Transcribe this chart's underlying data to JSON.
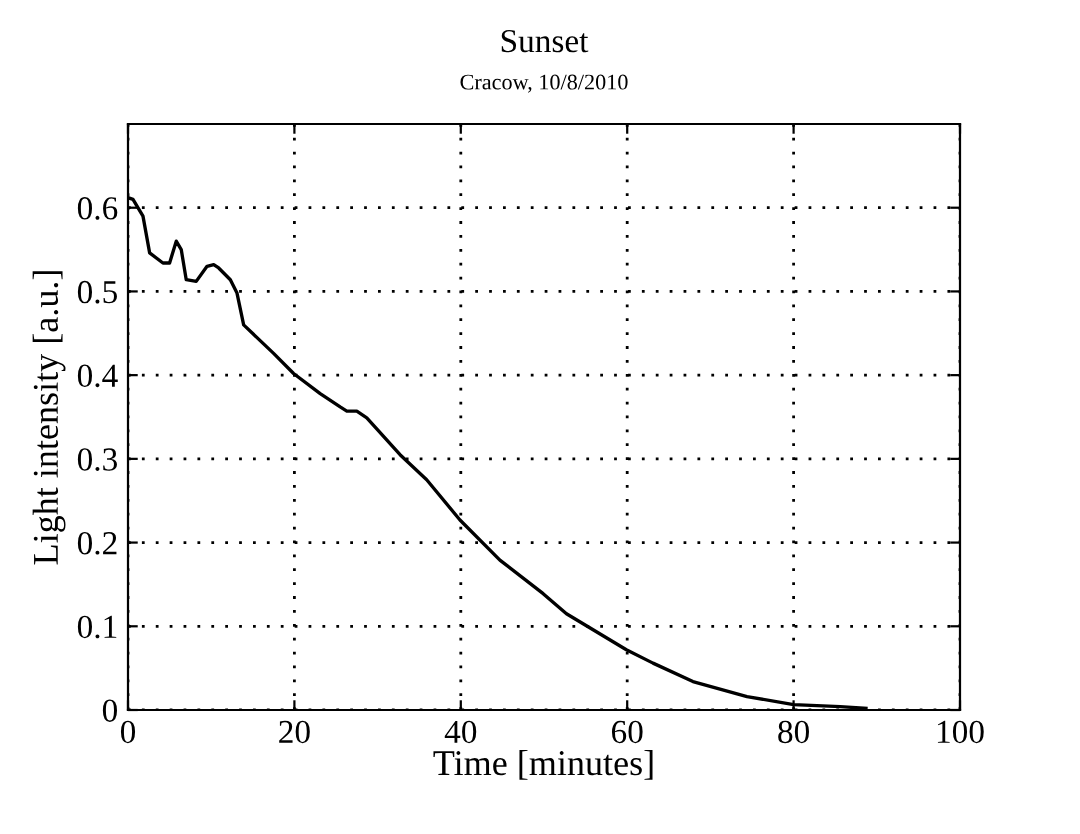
{
  "chart_data": {
    "type": "line",
    "title": "Sunset",
    "subtitle": "Cracow, 10/8/2010",
    "xlabel": "Time [minutes]",
    "ylabel": "Light intensity [a.u.]",
    "series": [
      {
        "color": "#000000",
        "x": [
          0,
          0.6,
          1.8,
          2.6,
          4.2,
          5.0,
          5.8,
          6.4,
          7.0,
          8.2,
          9.5,
          10.3,
          10.9,
          12.3,
          13.1,
          13.9,
          17.5,
          19.9,
          23.1,
          25.5,
          26.3,
          27.5,
          28.7,
          32.7,
          35.9,
          39.9,
          44.7,
          49.9,
          52.7,
          59.9,
          63.1,
          67.9,
          74.4,
          80,
          85.6,
          88.7
        ],
        "values": [
          0.612,
          0.61,
          0.59,
          0.546,
          0.534,
          0.534,
          0.56,
          0.55,
          0.514,
          0.512,
          0.53,
          0.532,
          0.528,
          0.514,
          0.498,
          0.46,
          0.426,
          0.402,
          0.378,
          0.362,
          0.357,
          0.357,
          0.349,
          0.305,
          0.275,
          0.227,
          0.179,
          0.139,
          0.115,
          0.072,
          0.056,
          0.034,
          0.016,
          0.0065,
          0.004,
          0.002
        ]
      }
    ],
    "xlim": [
      0,
      100
    ],
    "xticks": [
      0,
      20,
      40,
      60,
      80,
      100
    ],
    "ylim": [
      0,
      0.7
    ],
    "yticks": [
      0,
      0.1,
      0.2,
      0.3,
      0.4,
      0.5,
      0.6
    ],
    "grid": true,
    "line_style": "solid",
    "marker": "none"
  }
}
